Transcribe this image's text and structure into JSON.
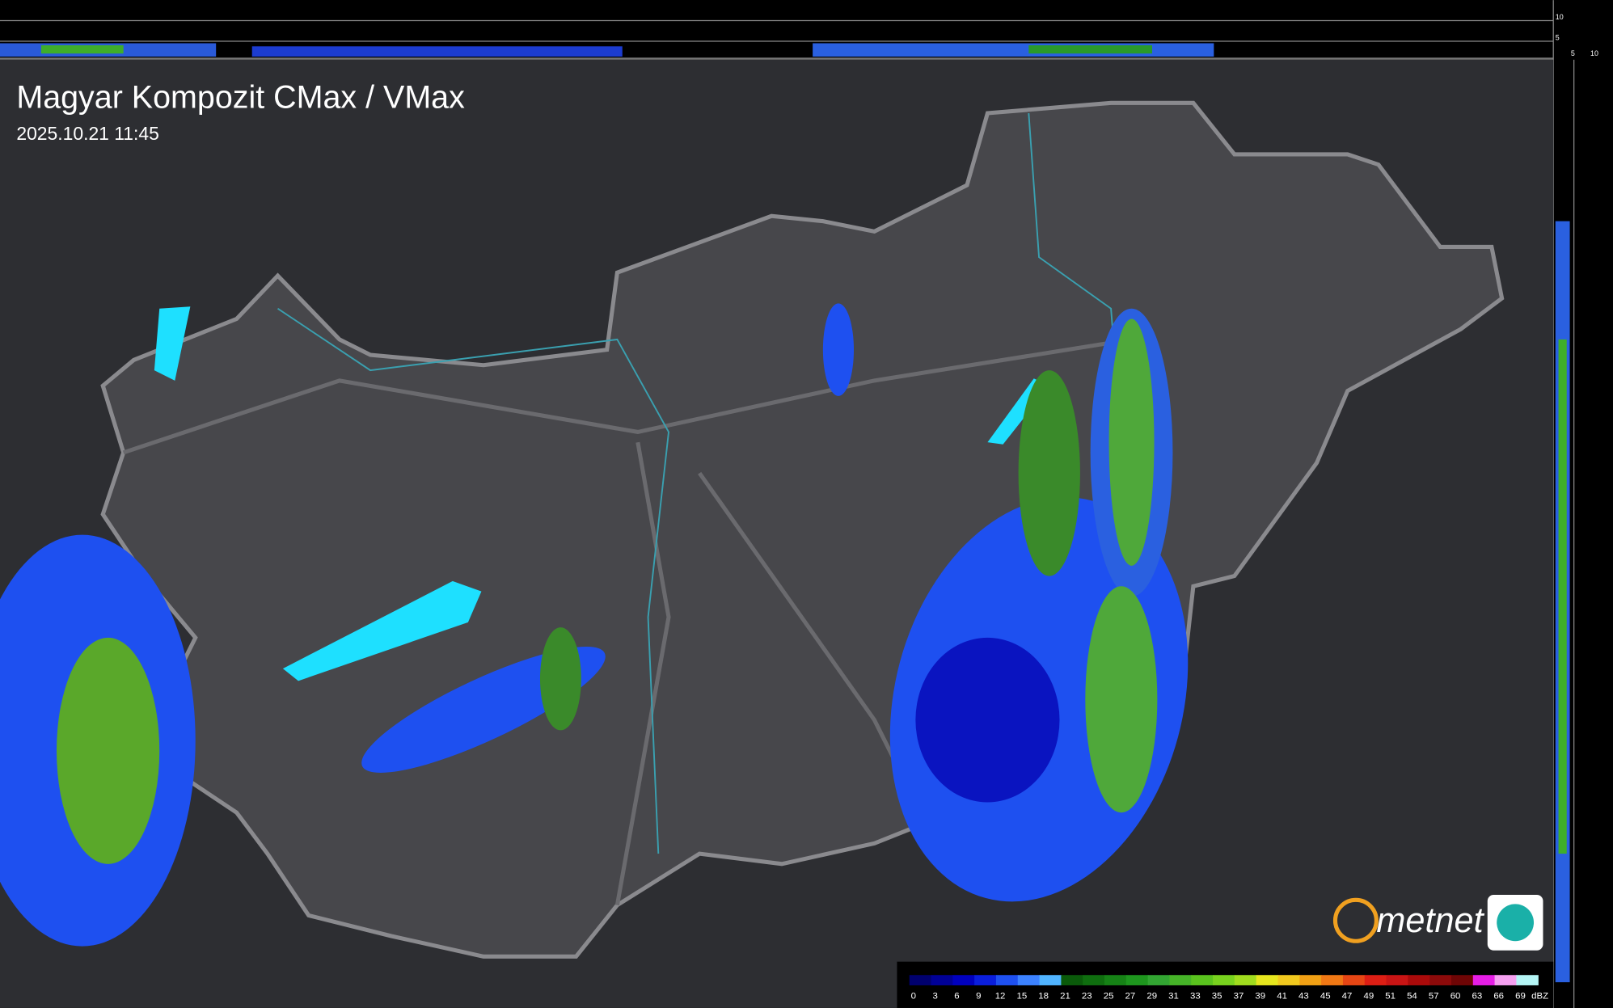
{
  "header": {
    "title": "Magyar Kompozit CMax / VMax",
    "timestamp": "2025.10.21 11:45"
  },
  "side_axis": {
    "top_labels": [
      "10",
      "5"
    ],
    "bottom_labels": [
      "5",
      "10"
    ]
  },
  "logo": {
    "text": "metnet"
  },
  "legend": {
    "unit": "dBZ",
    "steps": [
      {
        "label": "0",
        "color": "#00006e"
      },
      {
        "label": "3",
        "color": "#000096"
      },
      {
        "label": "6",
        "color": "#0000be"
      },
      {
        "label": "9",
        "color": "#0a1edc"
      },
      {
        "label": "12",
        "color": "#1e50f0"
      },
      {
        "label": "15",
        "color": "#3c82ff"
      },
      {
        "label": "18",
        "color": "#50b4ff"
      },
      {
        "label": "21",
        "color": "#0a5a0a"
      },
      {
        "label": "23",
        "color": "#0f6e0f"
      },
      {
        "label": "25",
        "color": "#168216"
      },
      {
        "label": "27",
        "color": "#1e961e"
      },
      {
        "label": "29",
        "color": "#32a532"
      },
      {
        "label": "31",
        "color": "#46b428"
      },
      {
        "label": "33",
        "color": "#5ac31e"
      },
      {
        "label": "35",
        "color": "#78d21e"
      },
      {
        "label": "37",
        "color": "#a0dc1e"
      },
      {
        "label": "39",
        "color": "#e6e61e"
      },
      {
        "label": "41",
        "color": "#f0c81e"
      },
      {
        "label": "43",
        "color": "#f0a014"
      },
      {
        "label": "45",
        "color": "#f07814"
      },
      {
        "label": "47",
        "color": "#e64614"
      },
      {
        "label": "49",
        "color": "#dc1e14"
      },
      {
        "label": "51",
        "color": "#c81414"
      },
      {
        "label": "54",
        "color": "#aa0a0a"
      },
      {
        "label": "57",
        "color": "#8c0a0a"
      },
      {
        "label": "60",
        "color": "#6e0505"
      },
      {
        "label": "63",
        "color": "#e61ee6"
      },
      {
        "label": "66",
        "color": "#f5a0f0"
      },
      {
        "label": "69",
        "color": "#b4f5f5"
      }
    ]
  }
}
